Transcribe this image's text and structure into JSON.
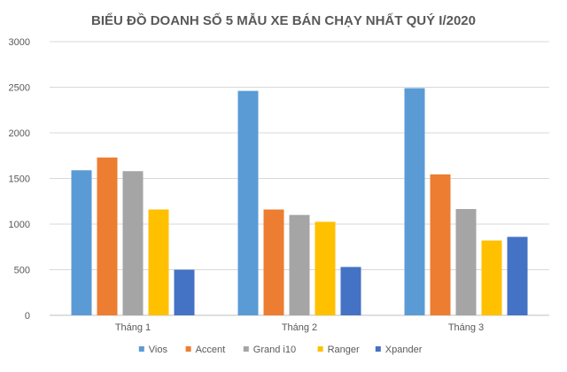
{
  "chart_data": {
    "type": "bar",
    "title": "BIỂU ĐỒ DOANH SỐ 5 MẪU XE BÁN CHẠY NHẤT QUÝ I/2020",
    "categories": [
      "Tháng 1",
      "Tháng 2",
      "Tháng 3"
    ],
    "series": [
      {
        "name": "Vios",
        "color": "#5b9bd5",
        "values": [
          1590,
          2460,
          2490
        ]
      },
      {
        "name": "Accent",
        "color": "#ed7d31",
        "values": [
          1730,
          1160,
          1545
        ]
      },
      {
        "name": "Grand i10",
        "color": "#a5a5a5",
        "values": [
          1580,
          1100,
          1165
        ]
      },
      {
        "name": "Ranger",
        "color": "#ffc000",
        "values": [
          1160,
          1025,
          820
        ]
      },
      {
        "name": "Xpander",
        "color": "#4472c4",
        "values": [
          500,
          530,
          860
        ]
      }
    ],
    "yticks": [
      "0",
      "500",
      "1000",
      "1500",
      "2000",
      "2500",
      "3000"
    ],
    "ylim": [
      0,
      3000
    ],
    "grid": true,
    "legend_position": "bottom"
  }
}
